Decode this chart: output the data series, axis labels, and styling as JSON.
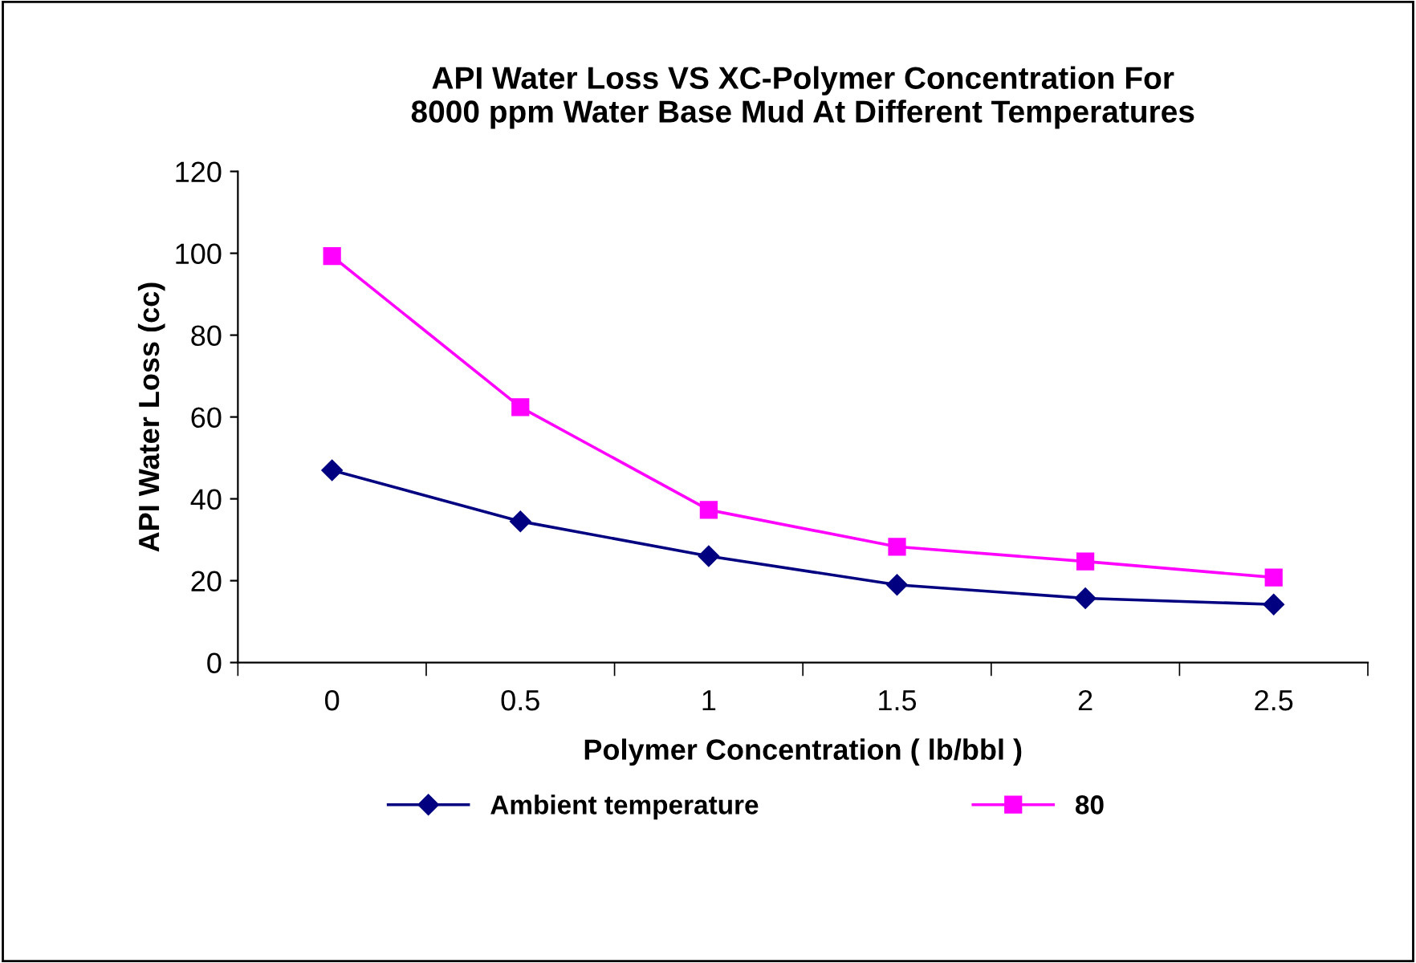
{
  "chart_data": {
    "type": "line",
    "title": "API Water Loss VS XC-Polymer Concentration For\n8000 ppm Water Base Mud At Different Temperatures",
    "xlabel": "Polymer Concentration ( lb/bbl )",
    "ylabel": "API Water Loss (cc)",
    "categories": [
      "0",
      "0.5",
      "1",
      "1.5",
      "2",
      "2.5"
    ],
    "series": [
      {
        "name": "Ambient temperature",
        "color": "#000080",
        "marker": "diamond",
        "values": [
          47,
          34.5,
          26,
          19,
          15.7,
          14.2
        ]
      },
      {
        "name": "80",
        "color": "#ff00ff",
        "marker": "square",
        "values": [
          99.3,
          62.4,
          37.3,
          28.3,
          24.7,
          20.8
        ]
      }
    ],
    "ylim": [
      0,
      120
    ],
    "yticks": [
      0,
      20,
      40,
      60,
      80,
      100,
      120
    ],
    "grid": false,
    "legend": "bottom"
  }
}
